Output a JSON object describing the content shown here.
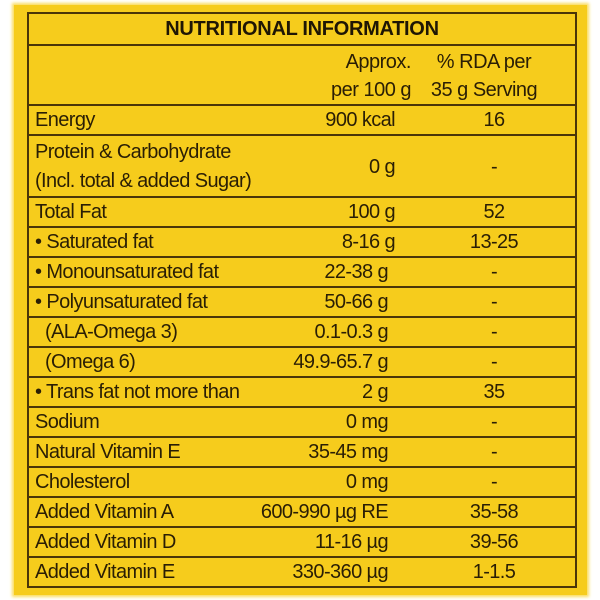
{
  "title": "NUTRITIONAL INFORMATION",
  "columns": {
    "per_100g": [
      "Approx.",
      "per 100 g"
    ],
    "rda": [
      "% RDA per",
      "35 g Serving"
    ]
  },
  "rows": [
    {
      "label": "Energy",
      "value": "900 kcal",
      "rda": "16"
    },
    {
      "label": "Protein & Carbohydrate",
      "label2": "(Incl. total & added Sugar)",
      "value": "0 g",
      "rda": "-"
    },
    {
      "label": "Total Fat",
      "value": "100 g",
      "rda": "52"
    },
    {
      "label": "• Saturated fat",
      "value": "8-16 g",
      "rda": "13-25"
    },
    {
      "label": "• Monounsaturated fat",
      "value": "22-38 g",
      "rda": "-"
    },
    {
      "label": "• Polyunsaturated fat",
      "value": "50-66 g",
      "rda": "-"
    },
    {
      "label": "(ALA-Omega 3)",
      "value": "0.1-0.3 g",
      "rda": "-"
    },
    {
      "label": "(Omega 6)",
      "value": "49.9-65.7 g",
      "rda": "-"
    },
    {
      "label": "• Trans fat not more than",
      "value": "2 g",
      "rda": "35"
    },
    {
      "label": "Sodium",
      "value": "0 mg",
      "rda": "-"
    },
    {
      "label": "Natural Vitamin E",
      "value": "35-45 mg",
      "rda": "-"
    },
    {
      "label": "Cholesterol",
      "value": "0 mg",
      "rda": "-"
    },
    {
      "label": "Added Vitamin A",
      "value": "600-990 µg RE",
      "rda": "35-58"
    },
    {
      "label": "Added Vitamin D",
      "value": "11-16 µg",
      "rda": "39-56"
    },
    {
      "label": "Added Vitamin E",
      "value": "330-360 µg",
      "rda": "1-1.5"
    }
  ],
  "colors": {
    "background": "#f6cc1c",
    "border": "#4a3508",
    "text": "#2a1e05"
  }
}
